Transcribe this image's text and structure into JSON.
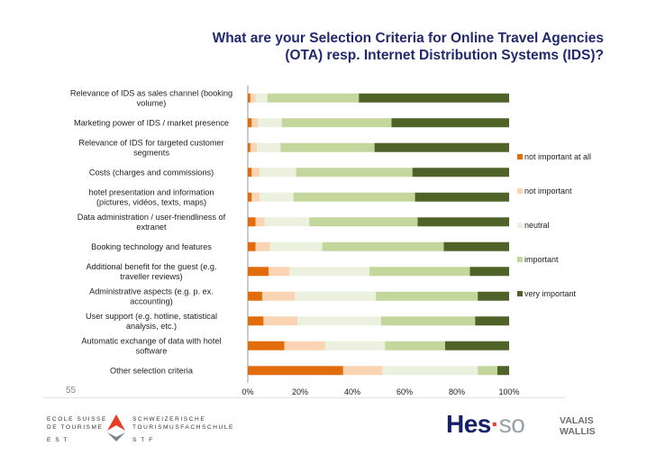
{
  "title_line1": "What are your Selection Criteria for Online Travel Agencies",
  "title_line2": "(OTA) resp. Internet Distribution Systems (IDS)?",
  "page_number": "55",
  "logo_left": {
    "line1": "ECOLE SUISSE",
    "line2": "DE TOURISME",
    "line3": "E S T",
    "line4": "SCHWEIZERISCHE",
    "line5": "TOURISMUSFACHSCHULE",
    "line6": "S T F"
  },
  "logo_right": {
    "hes": "Hes",
    "dot": "·",
    "so": "so",
    "valais": "VALAIS",
    "wallis": "WALLIS"
  },
  "colors": {
    "not important at all": "#e36c0a",
    "not important": "#fbd4b4",
    "neutral": "#ebf1de",
    "important": "#c3d69b",
    "very important": "#4f6228"
  },
  "chart_data": {
    "type": "bar",
    "orientation": "horizontal",
    "stacked": "percent",
    "categories": [
      "Relevance of IDS as sales channel (booking volume)",
      "Marketing power of IDS / market presence",
      "Relevance of IDS for targeted customer segments",
      "Costs (charges and commissions)",
      "hotel presentation and information (pictures, vidéos, texts, maps)",
      "Data administration / user-friendliness of extranet",
      "Booking technology and features",
      "Additional benefit for the guest (e.g. traveller reviews)",
      "Administrative aspects (e.g. p. ex. accounting)",
      "User support (e.g. hotline, statistical analysis, etc.)",
      "Automatic exchange of data with hotel software",
      "Other selection criteria"
    ],
    "series": [
      {
        "name": "not important at all",
        "values": [
          1,
          1.5,
          1,
          1.5,
          1.5,
          3,
          3,
          8,
          5.5,
          6,
          14,
          36.5
        ]
      },
      {
        "name": "not important",
        "values": [
          2,
          2.5,
          2.5,
          3,
          3,
          3.5,
          5.5,
          8,
          12.5,
          13,
          15.5,
          15
        ]
      },
      {
        "name": "neutral",
        "values": [
          4.5,
          9,
          9,
          14,
          13,
          17,
          20,
          30.5,
          31,
          32,
          23,
          36.5
        ]
      },
      {
        "name": "important",
        "values": [
          35,
          42,
          36,
          44.5,
          46.5,
          41.5,
          46.5,
          38.5,
          39,
          36,
          23,
          7.5
        ]
      },
      {
        "name": "very important",
        "values": [
          57.5,
          45,
          51.5,
          37,
          36,
          35,
          25,
          15,
          12,
          13,
          24.5,
          4.5
        ]
      }
    ],
    "xlim": [
      0,
      100
    ],
    "xticks": [
      "0%",
      "20%",
      "40%",
      "60%",
      "80%",
      "100%"
    ],
    "legend_position": "right",
    "grid": false
  }
}
